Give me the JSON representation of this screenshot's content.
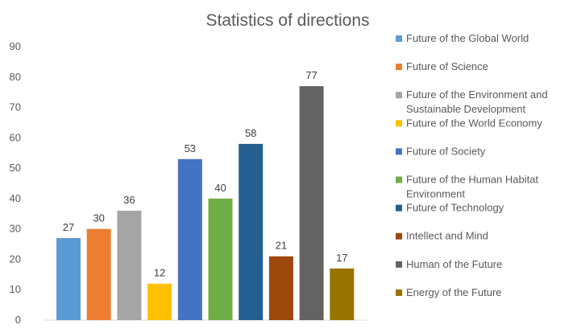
{
  "chart_data": {
    "type": "bar",
    "title": "Statistics of directions",
    "xlabel": "",
    "ylabel": "",
    "ylim": [
      0,
      90
    ],
    "yticks": [
      0,
      10,
      20,
      30,
      40,
      50,
      60,
      70,
      80,
      90
    ],
    "grid": false,
    "legend_position": "right",
    "categories": [
      "Future of the Global World",
      "Future of Science",
      "Future of the Environment and Sustainable Development",
      "Future of the World Economy",
      "Future of Society",
      "Future of the Human Habitat Environment",
      "Future of Technology",
      "Intellect and Mind",
      "Human of the Future",
      "Energy of the Future"
    ],
    "legend_lines": [
      [
        "Future of the Global World"
      ],
      [
        "Future of Science"
      ],
      [
        "Future of the Environment and",
        "Sustainable Development"
      ],
      [
        "Future of the World Economy"
      ],
      [
        "Future of Society"
      ],
      [
        "Future of the Human Habitat",
        "Environment"
      ],
      [
        "Future of Technology"
      ],
      [
        "Intellect and Mind"
      ],
      [
        "Human of the Future"
      ],
      [
        "Energy of the Future"
      ]
    ],
    "values": [
      27,
      30,
      36,
      12,
      53,
      40,
      58,
      21,
      77,
      17
    ],
    "colors": [
      "#5B9BD5",
      "#ED7D31",
      "#A5A5A5",
      "#FFC000",
      "#4472C4",
      "#70AD47",
      "#255E91",
      "#9E480E",
      "#636363",
      "#997300"
    ]
  }
}
